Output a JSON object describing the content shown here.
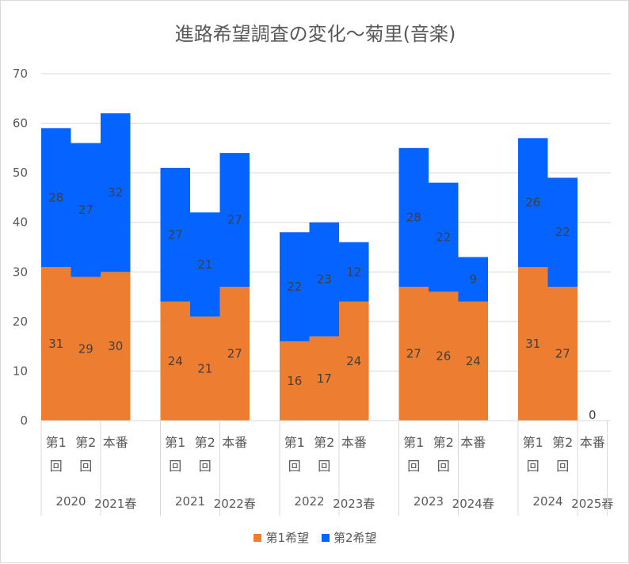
{
  "chart_data": {
    "type": "bar",
    "stacked": true,
    "title": "進路希望調査の変化～菊里(音楽)",
    "ylim": [
      0,
      70
    ],
    "yticks": [
      0,
      10,
      20,
      30,
      40,
      50,
      60,
      70
    ],
    "grid": true,
    "legend_position": "bottom",
    "groups": [
      {
        "label": "2020",
        "label2": "2021春",
        "categories": [
          "第1回",
          "第2回",
          "本番"
        ]
      },
      {
        "label": "2021",
        "label2": "2022春",
        "categories": [
          "第1回",
          "第2回",
          "本番"
        ]
      },
      {
        "label": "2022",
        "label2": "2023春",
        "categories": [
          "第1回",
          "第2回",
          "本番"
        ]
      },
      {
        "label": "2023",
        "label2": "2024春",
        "categories": [
          "第1回",
          "第2回",
          "本番"
        ]
      },
      {
        "label": "2024",
        "label2": "2025春",
        "categories": [
          "第1回",
          "第2回",
          "本番"
        ]
      }
    ],
    "series": [
      {
        "name": "第1希望",
        "color": "#ED7D31",
        "values": [
          31,
          29,
          30,
          24,
          21,
          27,
          16,
          17,
          24,
          27,
          26,
          24,
          31,
          27,
          0
        ]
      },
      {
        "name": "第2希望",
        "color": "#0563FF",
        "values": [
          28,
          27,
          32,
          27,
          21,
          27,
          22,
          23,
          12,
          28,
          22,
          9,
          26,
          22,
          0
        ]
      }
    ]
  }
}
